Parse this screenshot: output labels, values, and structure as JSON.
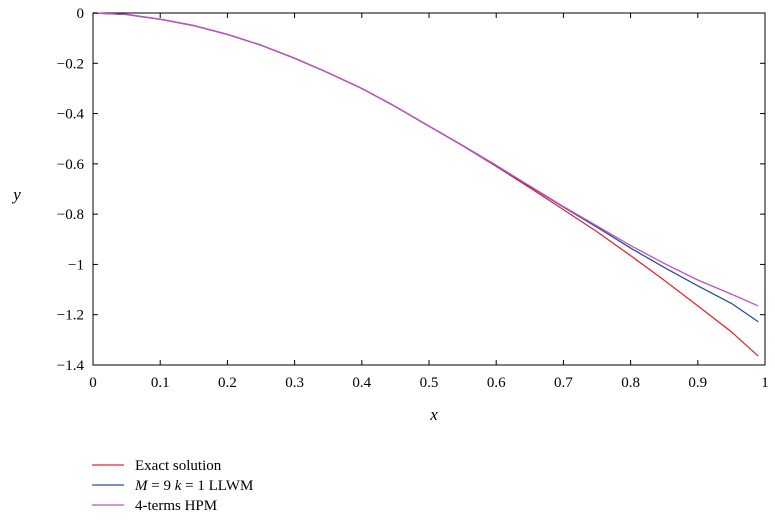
{
  "chart_data": {
    "type": "line",
    "xlabel": "x",
    "ylabel": "y",
    "xlim": [
      0,
      1
    ],
    "ylim": [
      -1.4,
      0
    ],
    "xticks": [
      0,
      0.1,
      0.2,
      0.3,
      0.4,
      0.5,
      0.6,
      0.7,
      0.8,
      0.9,
      1
    ],
    "xtick_labels": [
      "0",
      "0.1",
      "0.2",
      "0.3",
      "0.4",
      "0.5",
      "0.6",
      "0.7",
      "0.8",
      "0.9",
      "1"
    ],
    "yticks": [
      0,
      -0.2,
      -0.4,
      -0.6,
      -0.8,
      -1,
      -1.2,
      -1.4
    ],
    "ytick_labels": [
      "0",
      "−0.2",
      "−0.4",
      "−0.6",
      "−0.8",
      "−1",
      "−1.2",
      "−1.4"
    ],
    "grid": false,
    "legend_position": "below",
    "x": [
      0,
      0.05,
      0.1,
      0.15,
      0.2,
      0.25,
      0.3,
      0.35,
      0.4,
      0.45,
      0.5,
      0.55,
      0.6,
      0.65,
      0.7,
      0.75,
      0.8,
      0.85,
      0.9,
      0.95,
      0.99
    ],
    "series": [
      {
        "name": "Exact solution",
        "color": "#e8262a",
        "values": [
          0,
          -0.006,
          -0.025,
          -0.05,
          -0.085,
          -0.128,
          -0.18,
          -0.238,
          -0.3,
          -0.372,
          -0.45,
          -0.528,
          -0.61,
          -0.695,
          -0.782,
          -0.87,
          -0.965,
          -1.063,
          -1.165,
          -1.268,
          -1.365
        ]
      },
      {
        "name": "M = 9 k = 1 LLWM",
        "color": "#2a4f8f",
        "values": [
          0,
          -0.006,
          -0.025,
          -0.05,
          -0.085,
          -0.128,
          -0.18,
          -0.238,
          -0.3,
          -0.372,
          -0.45,
          -0.527,
          -0.607,
          -0.69,
          -0.772,
          -0.852,
          -0.935,
          -1.012,
          -1.085,
          -1.155,
          -1.228
        ]
      },
      {
        "name": "4-terms HPM",
        "color": "#c050c8",
        "values": [
          0,
          -0.006,
          -0.025,
          -0.05,
          -0.085,
          -0.128,
          -0.18,
          -0.238,
          -0.3,
          -0.372,
          -0.45,
          -0.527,
          -0.606,
          -0.688,
          -0.77,
          -0.847,
          -0.925,
          -0.996,
          -1.062,
          -1.118,
          -1.165
        ]
      }
    ],
    "legend": [
      {
        "parts": [
          {
            "t": "Exact solution",
            "i": false
          }
        ]
      },
      {
        "parts": [
          {
            "t": "M",
            "i": true
          },
          {
            "t": " = 9 ",
            "i": false
          },
          {
            "t": "k",
            "i": true
          },
          {
            "t": " = 1 LLWM",
            "i": false
          }
        ]
      },
      {
        "parts": [
          {
            "t": "4-terms HPM",
            "i": false
          }
        ]
      }
    ]
  }
}
